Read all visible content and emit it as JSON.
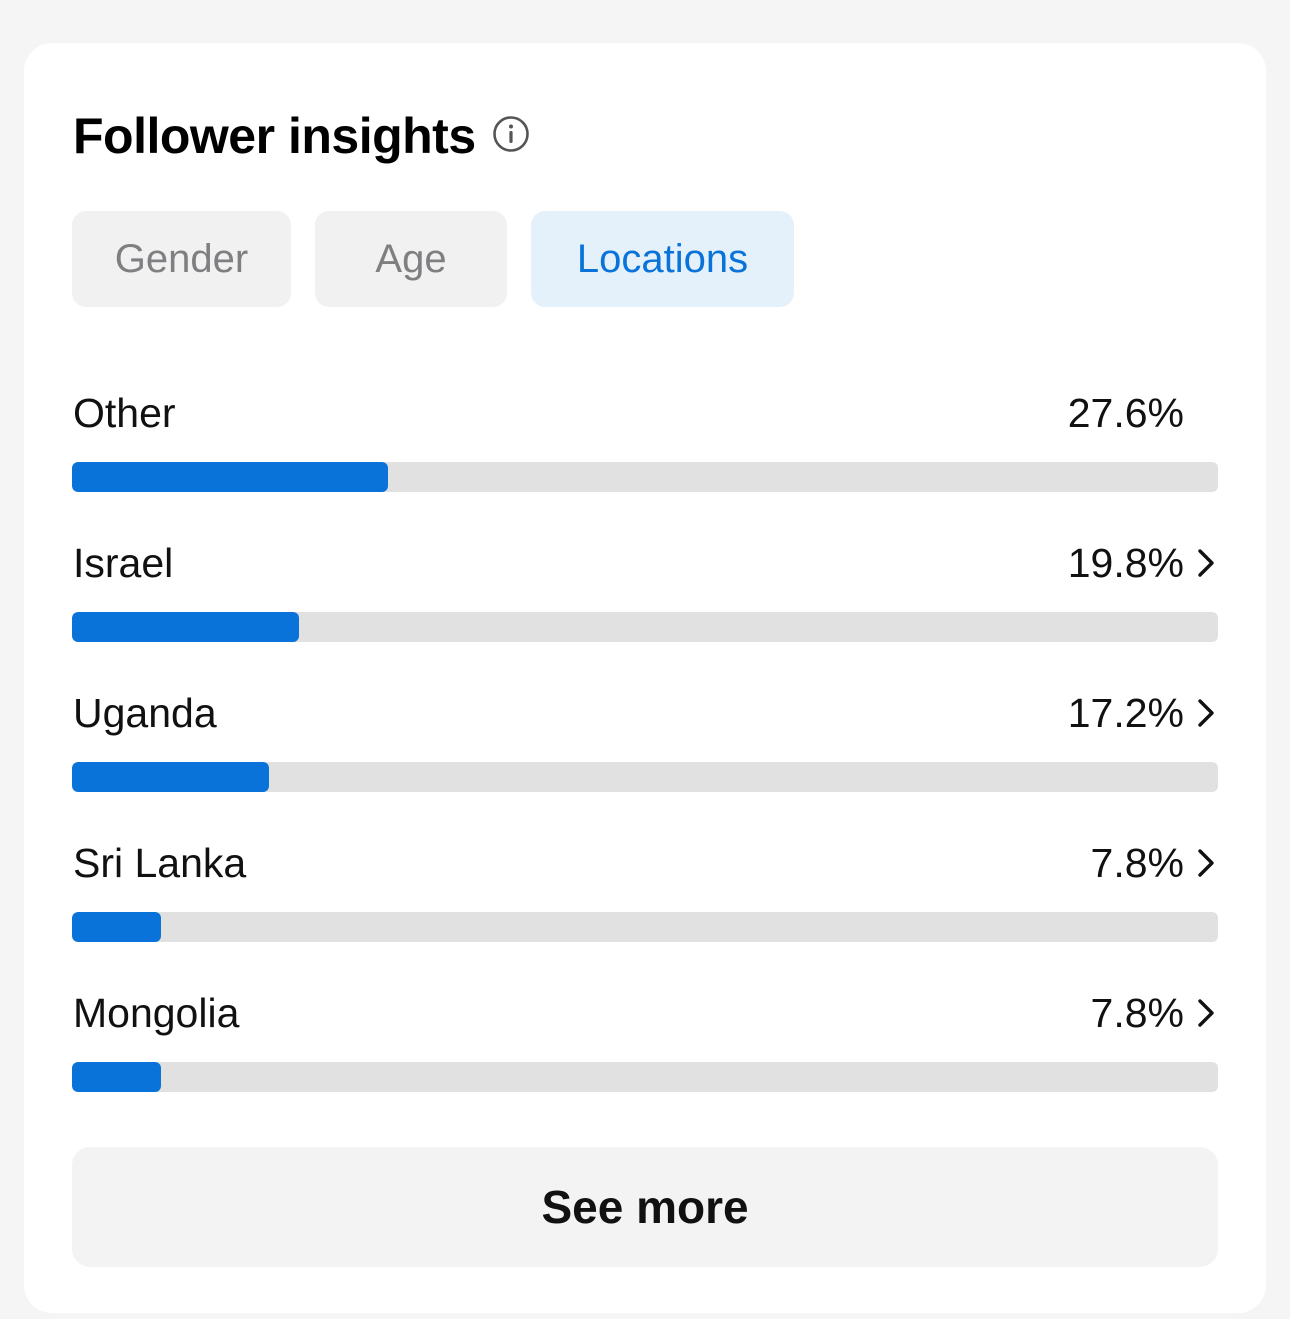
{
  "header": {
    "title": "Follower insights",
    "info_icon": "info-circle-icon"
  },
  "tabs": [
    {
      "label": "Gender",
      "active": false
    },
    {
      "label": "Age",
      "active": false
    },
    {
      "label": "Locations",
      "active": true
    }
  ],
  "locations": [
    {
      "name": "Other",
      "value": "27.6%",
      "percent": 27.6,
      "has_chevron": false
    },
    {
      "name": "Israel",
      "value": "19.8%",
      "percent": 19.8,
      "has_chevron": true
    },
    {
      "name": "Uganda",
      "value": "17.2%",
      "percent": 17.2,
      "has_chevron": true
    },
    {
      "name": "Sri Lanka",
      "value": "7.8%",
      "percent": 7.8,
      "has_chevron": true
    },
    {
      "name": "Mongolia",
      "value": "7.8%",
      "percent": 7.8,
      "has_chevron": true
    }
  ],
  "footer": {
    "see_more_label": "See more"
  },
  "colors": {
    "accent": "#0a73d9",
    "active_tab_bg": "#e4f1fb",
    "track": "#e1e1e2"
  }
}
